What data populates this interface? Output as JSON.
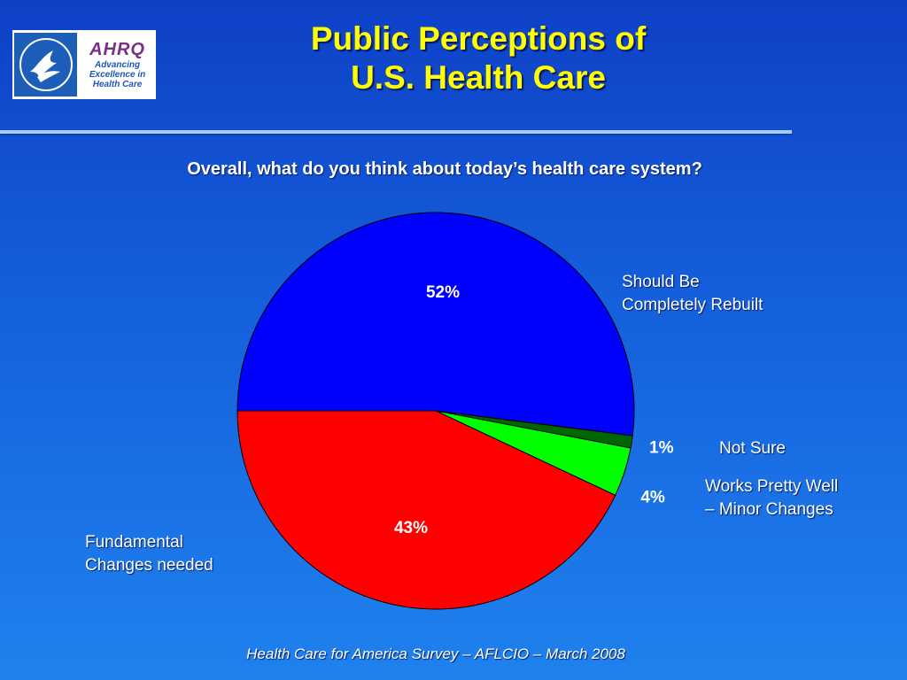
{
  "slide": {
    "title_line1": "Public Perceptions of",
    "title_line2": "U.S. Health Care",
    "question": "Overall, what do you think about today’s health care system?",
    "footer": "Health Care for America Survey – AFLCIO – March 2008"
  },
  "logos": {
    "ahrq_word": "AHRQ",
    "ahrq_tagline": "Advancing Excellence in Health Care",
    "hhs_icon": "hhs-eagle-seal"
  },
  "chart_data": {
    "type": "pie",
    "title": "",
    "slices": [
      {
        "label": "Should Be Completely Rebuilt",
        "value": 52,
        "value_label": "52%",
        "color": "#0000ff"
      },
      {
        "label": "Fundamental Changes needed",
        "value": 43,
        "value_label": "43%",
        "color": "#ff0000"
      },
      {
        "label": "Works Pretty Well – Minor Changes",
        "value": 4,
        "value_label": "4%",
        "color": "#00ff00"
      },
      {
        "label": "Not Sure",
        "value": 1,
        "value_label": "1%",
        "color": "#006600"
      }
    ]
  },
  "labels": {
    "rebuilt_line1": "Should Be",
    "rebuilt_line2": "Completely Rebuilt",
    "fundamental_line1": "Fundamental",
    "fundamental_line2": "Changes needed",
    "works_line1": "Works Pretty Well",
    "works_line2": "– Minor Changes",
    "not_sure": "Not Sure"
  }
}
